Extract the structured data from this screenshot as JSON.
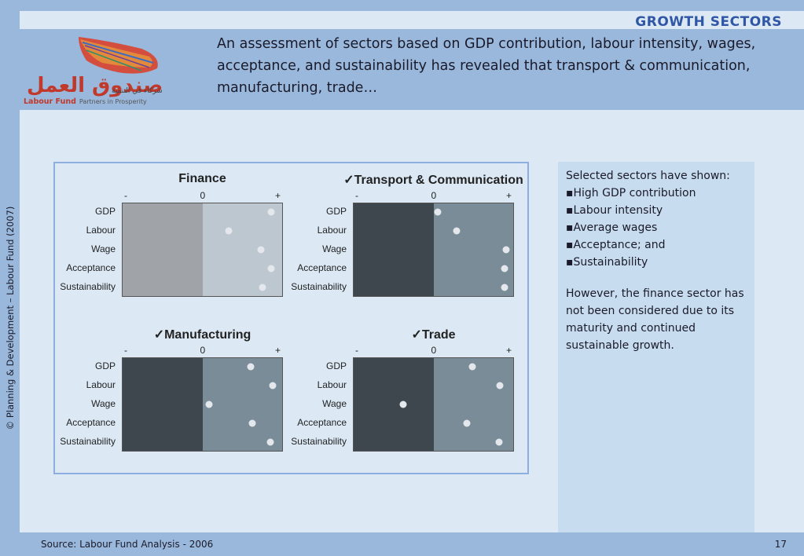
{
  "header": {
    "section_title": "GROWTH SECTORS",
    "subtitle": "An assessment of sectors based on GDP contribution, labour intensity, wages, acceptance, and sustainability has revealed that transport & communication, manufacturing, trade…"
  },
  "logo": {
    "arabic_name": "صندوق العمل",
    "arabic_tagline": "شركاء في التنمية",
    "english_name": "Labour Fund",
    "english_tagline": "Partners in Prosperity"
  },
  "copyright": "© Planning & Development – Labour Fund (2007)",
  "charts": [
    {
      "title": "Finance",
      "checked": false,
      "axis": {
        "minus": "-",
        "zero": "0",
        "plus": "+"
      },
      "rows": [
        {
          "label": "GDP",
          "value": 0.85
        },
        {
          "label": "Labour",
          "value": 0.33
        },
        {
          "label": "Wage",
          "value": 0.73
        },
        {
          "label": "Acceptance",
          "value": 0.85
        },
        {
          "label": "Sustainability",
          "value": 0.75
        }
      ],
      "colors": {
        "left": "#a0a3a7",
        "right": "#bcc7cf"
      }
    },
    {
      "title": "Transport & Communication",
      "checked": true,
      "axis": {
        "minus": "-",
        "zero": "0",
        "plus": "+"
      },
      "rows": [
        {
          "label": "GDP",
          "value": 0.05
        },
        {
          "label": "Labour",
          "value": 0.29
        },
        {
          "label": "Wage",
          "value": 0.9
        },
        {
          "label": "Acceptance",
          "value": 0.88
        },
        {
          "label": "Sustainability",
          "value": 0.88
        }
      ],
      "colors": {
        "left": "#3f474e",
        "right": "#7a8c97"
      }
    },
    {
      "title": "Manufacturing",
      "checked": true,
      "axis": {
        "minus": "-",
        "zero": "0",
        "plus": "+"
      },
      "rows": [
        {
          "label": "GDP",
          "value": 0.6
        },
        {
          "label": "Labour",
          "value": 0.87
        },
        {
          "label": "Wage",
          "value": 0.08
        },
        {
          "label": "Acceptance",
          "value": 0.62
        },
        {
          "label": "Sustainability",
          "value": 0.84
        }
      ],
      "colors": {
        "left": "#3f474e",
        "right": "#7a8c97"
      }
    },
    {
      "title": "Trade",
      "checked": true,
      "axis": {
        "minus": "-",
        "zero": "0",
        "plus": "+"
      },
      "rows": [
        {
          "label": "GDP",
          "value": 0.48
        },
        {
          "label": "Labour",
          "value": 0.82
        },
        {
          "label": "Wage",
          "value": -0.38
        },
        {
          "label": "Acceptance",
          "value": 0.41
        },
        {
          "label": "Sustainability",
          "value": 0.81
        }
      ],
      "colors": {
        "left": "#3f474e",
        "right": "#7a8c97"
      }
    }
  ],
  "sidebar": {
    "intro": "Selected sectors have shown:",
    "bullets": [
      "High GDP contribution",
      "Labour intensity",
      "Average wages",
      "Acceptance; and",
      "Sustainability"
    ],
    "note": "However, the finance sector has not been considered due to its maturity and continued sustainable growth."
  },
  "footer": {
    "source": "Source: Labour Fund Analysis - 2006",
    "page_number": "17"
  },
  "colors": {
    "band": "#9ab8db",
    "background": "#dce9f5",
    "accent_title": "#2f57a6",
    "side_panel": "#c8dcef"
  }
}
